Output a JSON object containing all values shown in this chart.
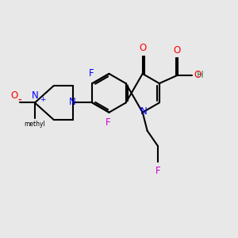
{
  "bg_color": "#e8e8e8",
  "bond_width": 1.5,
  "fig_width": 3.0,
  "fig_height": 3.0,
  "dpi": 100,
  "xlim": [
    0,
    10
  ],
  "ylim": [
    0,
    10
  ]
}
